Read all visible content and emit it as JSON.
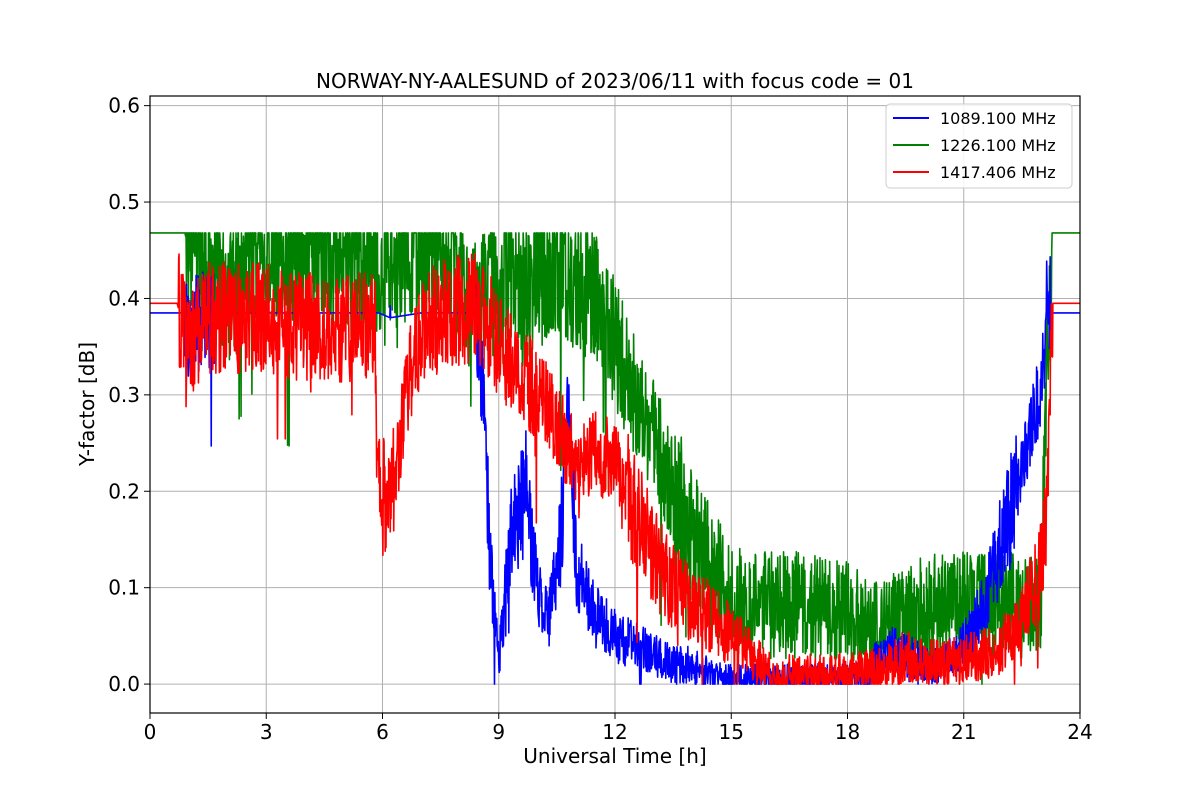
{
  "chart_data": {
    "type": "line",
    "title": "NORWAY-NY-AALESUND of 2023/06/11 with focus code = 01",
    "xlabel": "Universal Time [h]",
    "ylabel": "Y-factor [dB]",
    "xlim": [
      0,
      24
    ],
    "ylim": [
      -0.03,
      0.61
    ],
    "xticks": [
      0,
      3,
      6,
      9,
      12,
      15,
      18,
      21,
      24
    ],
    "yticks": [
      0.0,
      0.1,
      0.2,
      0.3,
      0.4,
      0.5,
      0.6
    ],
    "xtick_labels": [
      "0",
      "3",
      "6",
      "9",
      "12",
      "15",
      "18",
      "21",
      "24"
    ],
    "ytick_labels": [
      "0.0",
      "0.1",
      "0.2",
      "0.3",
      "0.4",
      "0.5",
      "0.6"
    ],
    "grid": true,
    "legend_position": "top-right",
    "series": [
      {
        "name": "1089.100 MHz",
        "color": "#0000ff",
        "baseline": 0.385,
        "noise": 0.015,
        "points": [
          [
            0,
            0.385
          ],
          [
            0.8,
            0.385
          ],
          [
            1,
            0.37
          ],
          [
            2,
            0.385
          ],
          [
            3,
            0.385
          ],
          [
            4,
            0.385
          ],
          [
            5,
            0.385
          ],
          [
            5.9,
            0.385
          ],
          [
            6.2,
            0.38
          ],
          [
            7,
            0.385
          ],
          [
            8,
            0.385
          ],
          [
            8.4,
            0.385
          ],
          [
            8.6,
            0.3
          ],
          [
            8.75,
            0.15
          ],
          [
            9,
            0.02
          ],
          [
            9.3,
            0.15
          ],
          [
            9.7,
            0.2
          ],
          [
            10,
            0.1
          ],
          [
            10.3,
            0.07
          ],
          [
            10.6,
            0.15
          ],
          [
            10.8,
            0.3
          ],
          [
            11,
            0.12
          ],
          [
            11.5,
            0.07
          ],
          [
            12,
            0.05
          ],
          [
            12.5,
            0.04
          ],
          [
            13,
            0.03
          ],
          [
            13.5,
            0.02
          ],
          [
            14,
            0.02
          ],
          [
            14.5,
            0.01
          ],
          [
            15,
            0.005
          ],
          [
            16,
            0.005
          ],
          [
            17,
            0.005
          ],
          [
            18,
            0.005
          ],
          [
            18.5,
            0.01
          ],
          [
            19,
            0.04
          ],
          [
            19.5,
            0.03
          ],
          [
            20,
            0.02
          ],
          [
            20.5,
            0.02
          ],
          [
            21,
            0.04
          ],
          [
            21.5,
            0.08
          ],
          [
            22,
            0.15
          ],
          [
            22.5,
            0.22
          ],
          [
            22.8,
            0.28
          ],
          [
            23,
            0.3
          ],
          [
            23.15,
            0.4
          ],
          [
            23.3,
            0.385
          ],
          [
            24,
            0.385
          ]
        ]
      },
      {
        "name": "1226.100 MHz",
        "color": "#008000",
        "baseline": 0.468,
        "noise": 0.035,
        "points": [
          [
            0,
            0.468
          ],
          [
            0.5,
            0.468
          ],
          [
            0.9,
            0.468
          ],
          [
            1,
            0.45
          ],
          [
            1.5,
            0.43
          ],
          [
            2,
            0.41
          ],
          [
            2.5,
            0.43
          ],
          [
            3,
            0.45
          ],
          [
            3.5,
            0.45
          ],
          [
            4,
            0.45
          ],
          [
            4.5,
            0.44
          ],
          [
            5,
            0.44
          ],
          [
            5.5,
            0.43
          ],
          [
            6,
            0.45
          ],
          [
            6.5,
            0.45
          ],
          [
            7,
            0.45
          ],
          [
            7.5,
            0.45
          ],
          [
            7.8,
            0.45
          ],
          [
            8.2,
            0.4
          ],
          [
            8.5,
            0.38
          ],
          [
            8.8,
            0.43
          ],
          [
            9,
            0.38
          ],
          [
            9.3,
            0.44
          ],
          [
            9.6,
            0.4
          ],
          [
            10,
            0.42
          ],
          [
            10.5,
            0.44
          ],
          [
            11,
            0.42
          ],
          [
            11.5,
            0.4
          ],
          [
            12,
            0.35
          ],
          [
            12.5,
            0.3
          ],
          [
            13,
            0.26
          ],
          [
            13.5,
            0.2
          ],
          [
            14,
            0.15
          ],
          [
            14.5,
            0.12
          ],
          [
            15,
            0.09
          ],
          [
            15.5,
            0.082
          ],
          [
            16,
            0.082
          ],
          [
            17,
            0.082
          ],
          [
            18,
            0.075
          ],
          [
            18.5,
            0.06
          ],
          [
            19,
            0.065
          ],
          [
            19.5,
            0.07
          ],
          [
            20,
            0.08
          ],
          [
            21,
            0.082
          ],
          [
            22,
            0.082
          ],
          [
            23,
            0.082
          ],
          [
            23.15,
            0.35
          ],
          [
            23.3,
            0.468
          ],
          [
            24,
            0.468
          ]
        ]
      },
      {
        "name": "1417.406 MHz",
        "color": "#ff0000",
        "baseline": 0.395,
        "noise": 0.02,
        "points": [
          [
            0,
            0.395
          ],
          [
            0.7,
            0.395
          ],
          [
            1,
            0.35
          ],
          [
            1.5,
            0.38
          ],
          [
            2,
            0.38
          ],
          [
            3,
            0.38
          ],
          [
            4,
            0.37
          ],
          [
            5,
            0.37
          ],
          [
            5.8,
            0.37
          ],
          [
            5.85,
            0.23
          ],
          [
            6,
            0.2
          ],
          [
            6.3,
            0.2
          ],
          [
            6.6,
            0.3
          ],
          [
            7,
            0.37
          ],
          [
            7.5,
            0.38
          ],
          [
            8,
            0.39
          ],
          [
            8.5,
            0.39
          ],
          [
            9,
            0.35
          ],
          [
            9.5,
            0.33
          ],
          [
            10,
            0.3
          ],
          [
            10.5,
            0.27
          ],
          [
            11,
            0.23
          ],
          [
            11.5,
            0.24
          ],
          [
            12,
            0.23
          ],
          [
            12.5,
            0.18
          ],
          [
            13,
            0.13
          ],
          [
            13.5,
            0.1
          ],
          [
            14,
            0.08
          ],
          [
            14.5,
            0.07
          ],
          [
            15,
            0.05
          ],
          [
            15.5,
            0.03
          ],
          [
            16,
            0.01
          ],
          [
            17,
            0.01
          ],
          [
            18,
            0.01
          ],
          [
            19,
            0.015
          ],
          [
            19.5,
            0.03
          ],
          [
            20,
            0.025
          ],
          [
            20.5,
            0.02
          ],
          [
            21,
            0.025
          ],
          [
            21.5,
            0.03
          ],
          [
            22,
            0.04
          ],
          [
            22.5,
            0.07
          ],
          [
            23,
            0.12
          ],
          [
            23.15,
            0.2
          ],
          [
            23.3,
            0.395
          ],
          [
            24,
            0.395
          ]
        ]
      }
    ]
  }
}
